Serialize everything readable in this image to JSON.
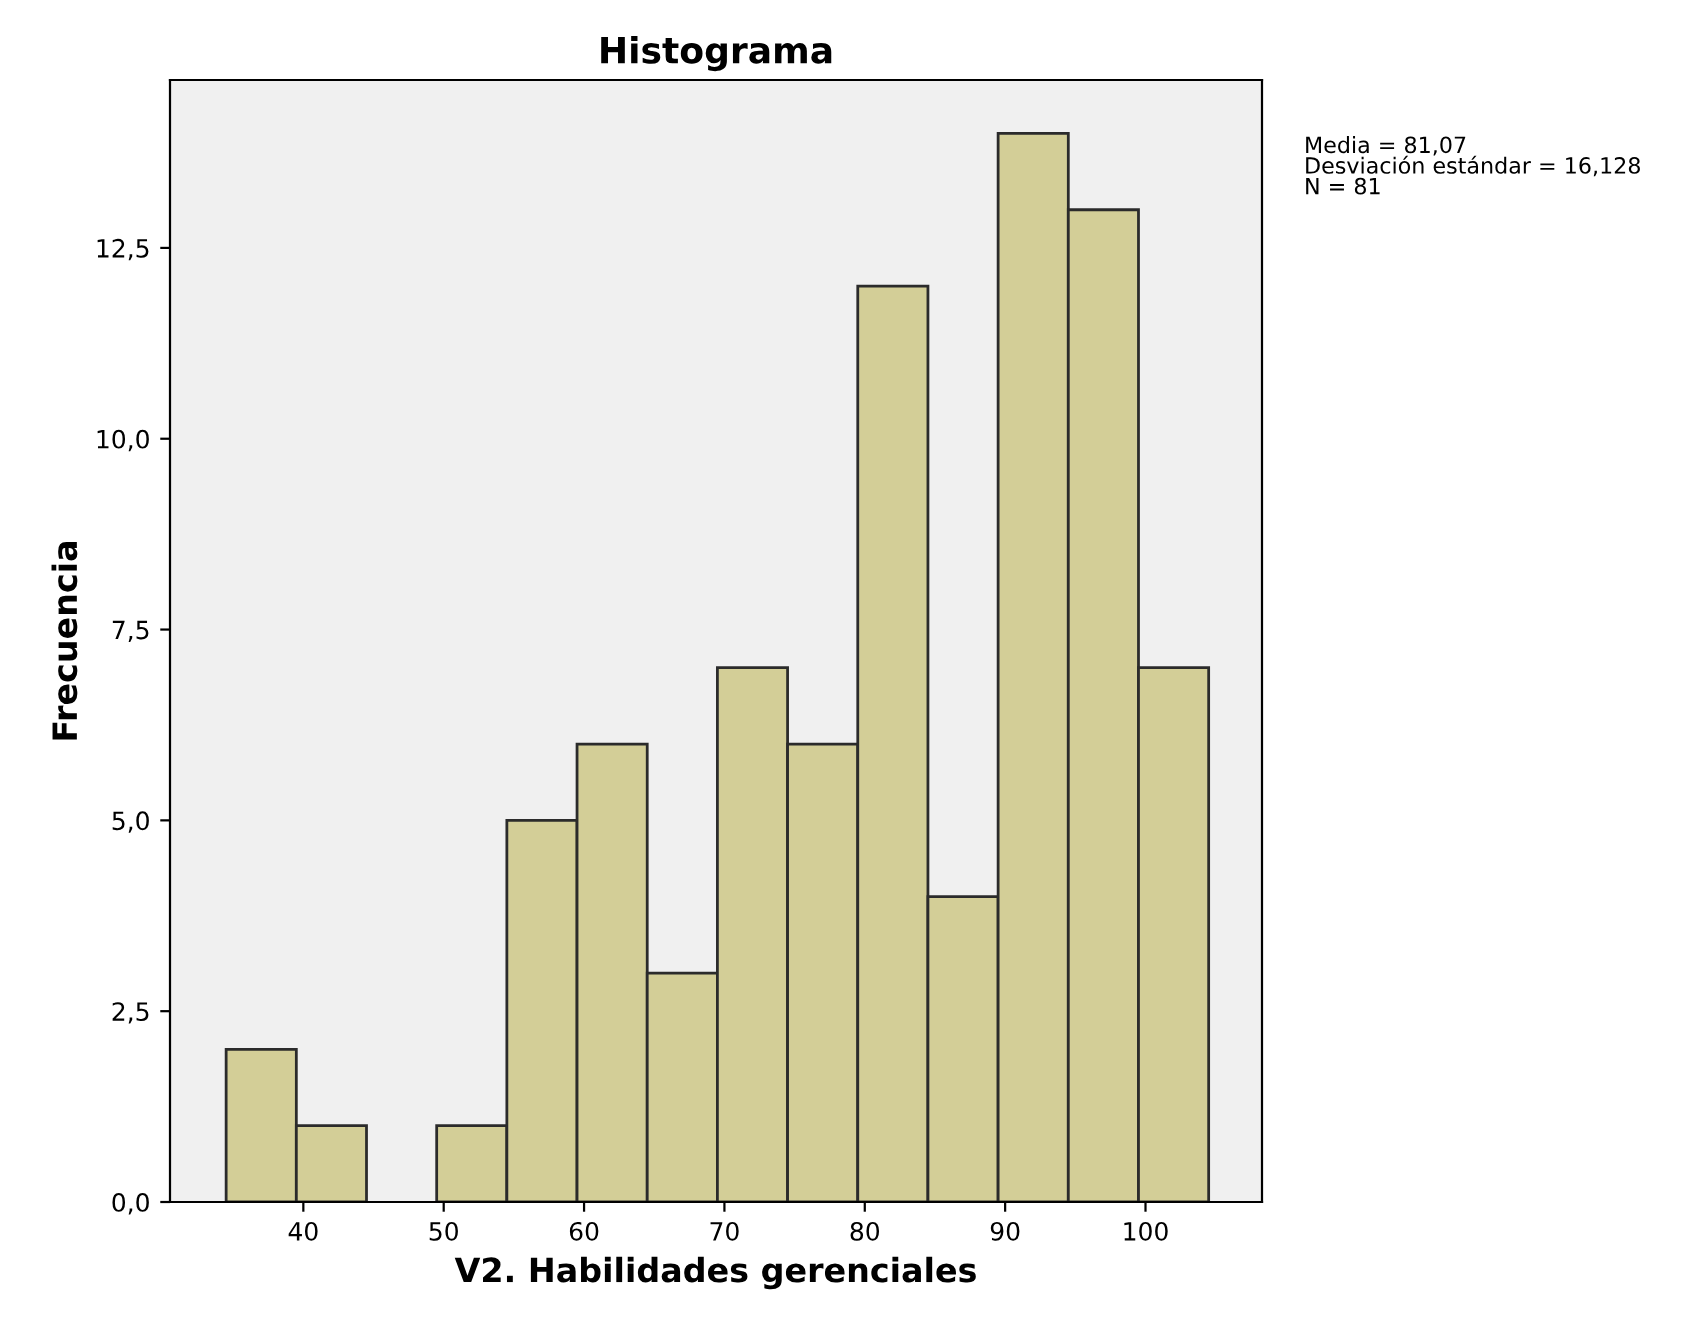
{
  "chart_data": {
    "type": "histogram",
    "title": "Histograma",
    "xlabel": "V2. Habilidades gerenciales",
    "ylabel": "Frecuencia",
    "bins": [
      34.5,
      39.5,
      44.5,
      49.5,
      54.5,
      59.5,
      64.5,
      69.5,
      74.5,
      79.5,
      84.5,
      89.5,
      94.5,
      99.5,
      104.5
    ],
    "values": [
      2,
      1,
      0,
      1,
      5,
      6,
      3,
      7,
      6,
      12,
      4,
      14,
      13,
      7
    ],
    "color": "#d3ce97",
    "xlim": [
      30.5,
      108.3
    ],
    "xticks": [
      40,
      50,
      60,
      70,
      80,
      90,
      100
    ],
    "ylim": [
      0,
      14.7
    ],
    "yticks": [
      {
        "value": 0,
        "label": "0,0"
      },
      {
        "value": 2.5,
        "label": "2,5"
      },
      {
        "value": 5,
        "label": "5,0"
      },
      {
        "value": 7.5,
        "label": "7,5"
      },
      {
        "value": 10,
        "label": "10,0"
      },
      {
        "value": 12.5,
        "label": "12,5"
      }
    ],
    "grid": false,
    "annotations": [
      "Media = 81,07\nDesviación estándar = 16,128\nN = 81"
    ]
  }
}
